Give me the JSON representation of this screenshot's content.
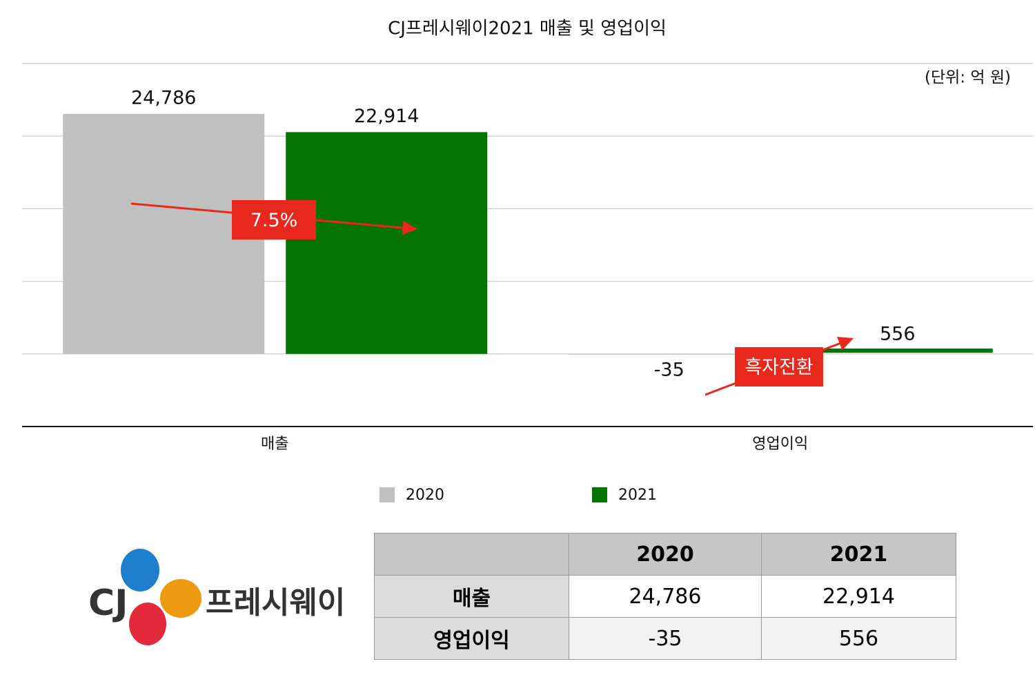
{
  "chart_data": {
    "type": "bar",
    "title": "CJ프레시웨이2021 매출 및 영업이익",
    "unit_note": "(단위: 억 원)",
    "categories": [
      "매출",
      "영업이익"
    ],
    "series": [
      {
        "name": "2020",
        "color": "#c0c0c0",
        "values": [
          24786,
          -35
        ],
        "value_labels": [
          "24,786",
          "-35"
        ]
      },
      {
        "name": "2021",
        "color": "#047404",
        "values": [
          22914,
          556
        ],
        "value_labels": [
          "22,914",
          "556"
        ]
      }
    ],
    "ylim": [
      -7500,
      30000
    ],
    "yticks": [
      -7500,
      0,
      7500,
      15000,
      22500,
      30000
    ],
    "grid": true,
    "annotations": [
      {
        "text": "7.5%",
        "color": "#e8271d"
      },
      {
        "text": "흑자전환",
        "color": "#e8271d"
      }
    ]
  },
  "table": {
    "columns": [
      "2020",
      "2021"
    ],
    "rows": [
      {
        "label": "매출",
        "cells": [
          "24,786",
          "22,914"
        ]
      },
      {
        "label": "영업이익",
        "cells": [
          "-35",
          "556"
        ]
      }
    ]
  },
  "logo": {
    "brand": "CJ",
    "name": "프레시웨이"
  }
}
